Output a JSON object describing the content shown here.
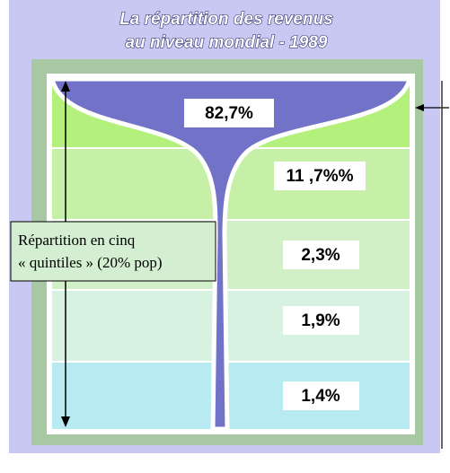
{
  "title": [
    "La répartition des revenus",
    "au niveau mondial - 1989"
  ],
  "labels": [
    "82,7%",
    "11 ,7%%",
    "2,3%",
    "1,9%",
    "1,4%"
  ],
  "note": [
    "Répartition en cinq",
    "« quintiles » (20% pop)"
  ]
}
